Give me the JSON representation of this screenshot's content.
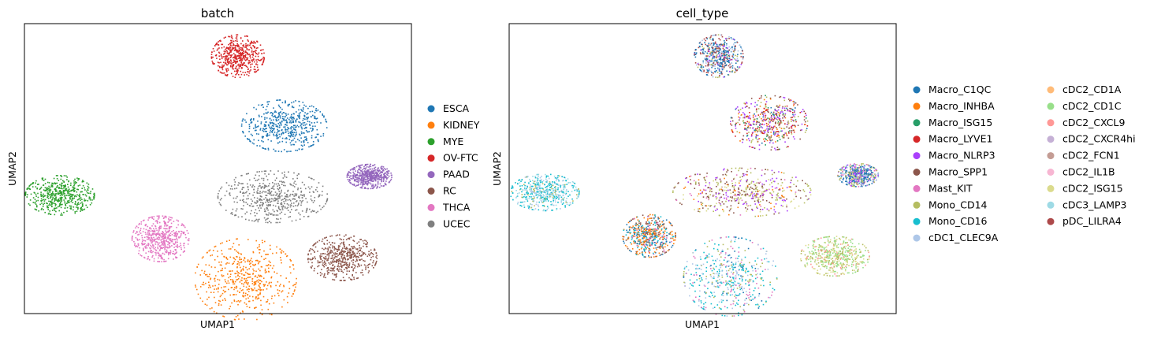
{
  "chart_data": [
    {
      "type": "scatter",
      "title": "batch",
      "xlabel": "UMAP1",
      "ylabel": "UMAP2",
      "grid": false,
      "legend_placement": "right",
      "legend_columns": 1,
      "series": [
        {
          "name": "ESCA",
          "color": "#1f77b4"
        },
        {
          "name": "KIDNEY",
          "color": "#ff7f0e"
        },
        {
          "name": "MYE",
          "color": "#2ca02c"
        },
        {
          "name": "OV-FTC",
          "color": "#d62728"
        },
        {
          "name": "PAAD",
          "color": "#9467bd"
        },
        {
          "name": "RC",
          "color": "#8c564b"
        },
        {
          "name": "THCA",
          "color": "#e377c2"
        },
        {
          "name": "UCEC",
          "color": "#7f7f7f"
        }
      ],
      "clusters": [
        {
          "cx": 0.55,
          "cy": 0.89,
          "rx": 0.065,
          "ry": 0.07,
          "mix": [
            [
              3,
              1
            ]
          ]
        },
        {
          "cx": 0.67,
          "cy": 0.65,
          "rx": 0.105,
          "ry": 0.085,
          "mix": [
            [
              0,
              1
            ]
          ]
        },
        {
          "cx": 0.89,
          "cy": 0.475,
          "rx": 0.055,
          "ry": 0.04,
          "mix": [
            [
              4,
              1
            ]
          ]
        },
        {
          "cx": 0.09,
          "cy": 0.41,
          "rx": 0.085,
          "ry": 0.065,
          "mix": [
            [
              2,
              1
            ]
          ]
        },
        {
          "cx": 0.64,
          "cy": 0.405,
          "rx": 0.135,
          "ry": 0.085,
          "mix": [
            [
              7,
              1
            ]
          ]
        },
        {
          "cx": 0.35,
          "cy": 0.26,
          "rx": 0.07,
          "ry": 0.075,
          "mix": [
            [
              6,
              1
            ]
          ]
        },
        {
          "cx": 0.57,
          "cy": 0.12,
          "rx": 0.125,
          "ry": 0.135,
          "mix": [
            [
              1,
              1
            ]
          ]
        },
        {
          "cx": 0.82,
          "cy": 0.195,
          "rx": 0.085,
          "ry": 0.075,
          "mix": [
            [
              5,
              1
            ]
          ]
        }
      ]
    },
    {
      "type": "scatter",
      "title": "cell_type",
      "xlabel": "UMAP1",
      "ylabel": "UMAP2",
      "grid": false,
      "legend_placement": "right",
      "legend_columns": 2,
      "series": [
        {
          "name": "Macro_C1QC",
          "color": "#1f77b4"
        },
        {
          "name": "Macro_INHBA",
          "color": "#ff7f0e"
        },
        {
          "name": "Macro_ISG15",
          "color": "#279e68"
        },
        {
          "name": "Macro_LYVE1",
          "color": "#d62728"
        },
        {
          "name": "Macro_NLRP3",
          "color": "#aa40fc"
        },
        {
          "name": "Macro_SPP1",
          "color": "#8c564b"
        },
        {
          "name": "Mast_KIT",
          "color": "#e377c2"
        },
        {
          "name": "Mono_CD14",
          "color": "#b5bd61"
        },
        {
          "name": "Mono_CD16",
          "color": "#17becf"
        },
        {
          "name": "cDC1_CLEC9A",
          "color": "#aec7e8"
        },
        {
          "name": "cDC2_CD1A",
          "color": "#ffbb78"
        },
        {
          "name": "cDC2_CD1C",
          "color": "#98df8a"
        },
        {
          "name": "cDC2_CXCL9",
          "color": "#ff9896"
        },
        {
          "name": "cDC2_CXCR4hi",
          "color": "#c5b0d5"
        },
        {
          "name": "cDC2_FCN1",
          "color": "#c49c94"
        },
        {
          "name": "cDC2_IL1B",
          "color": "#f7b6d2"
        },
        {
          "name": "cDC2_ISG15",
          "color": "#dbdb8d"
        },
        {
          "name": "cDC3_LAMP3",
          "color": "#9edae5"
        },
        {
          "name": "pDC_LILRA4",
          "color": "#ad494a"
        }
      ],
      "clusters": [
        {
          "cx": 0.54,
          "cy": 0.89,
          "rx": 0.06,
          "ry": 0.07,
          "mix": [
            [
              0,
              5
            ],
            [
              18,
              3
            ],
            [
              9,
              2
            ],
            [
              7,
              1
            ],
            [
              4,
              1
            ]
          ]
        },
        {
          "cx": 0.67,
          "cy": 0.66,
          "rx": 0.095,
          "ry": 0.09,
          "mix": [
            [
              4,
              3
            ],
            [
              5,
              3
            ],
            [
              3,
              2
            ],
            [
              1,
              2
            ],
            [
              7,
              2
            ],
            [
              0,
              1
            ],
            [
              2,
              1
            ]
          ]
        },
        {
          "cx": 0.9,
          "cy": 0.48,
          "rx": 0.05,
          "ry": 0.038,
          "mix": [
            [
              0,
              3
            ],
            [
              9,
              2
            ],
            [
              7,
              2
            ],
            [
              6,
              1
            ],
            [
              4,
              1
            ]
          ]
        },
        {
          "cx": 0.09,
          "cy": 0.42,
          "rx": 0.085,
          "ry": 0.06,
          "mix": [
            [
              8,
              4
            ],
            [
              17,
              3
            ],
            [
              9,
              2
            ],
            [
              7,
              1
            ]
          ]
        },
        {
          "cx": 0.6,
          "cy": 0.42,
          "rx": 0.17,
          "ry": 0.08,
          "mix": [
            [
              5,
              3
            ],
            [
              4,
              2
            ],
            [
              7,
              3
            ],
            [
              16,
              2
            ],
            [
              6,
              1
            ],
            [
              1,
              1
            ]
          ]
        },
        {
          "cx": 0.36,
          "cy": 0.27,
          "rx": 0.065,
          "ry": 0.07,
          "mix": [
            [
              1,
              3
            ],
            [
              5,
              2
            ],
            [
              0,
              2
            ],
            [
              8,
              2
            ],
            [
              6,
              1
            ]
          ]
        },
        {
          "cx": 0.57,
          "cy": 0.13,
          "rx": 0.115,
          "ry": 0.13,
          "mix": [
            [
              8,
              5
            ],
            [
              9,
              3
            ],
            [
              7,
              2
            ],
            [
              6,
              2
            ],
            [
              0,
              1
            ]
          ]
        },
        {
          "cx": 0.84,
          "cy": 0.2,
          "rx": 0.085,
          "ry": 0.065,
          "mix": [
            [
              11,
              4
            ],
            [
              16,
              3
            ],
            [
              7,
              2
            ],
            [
              12,
              1
            ]
          ]
        }
      ]
    }
  ]
}
